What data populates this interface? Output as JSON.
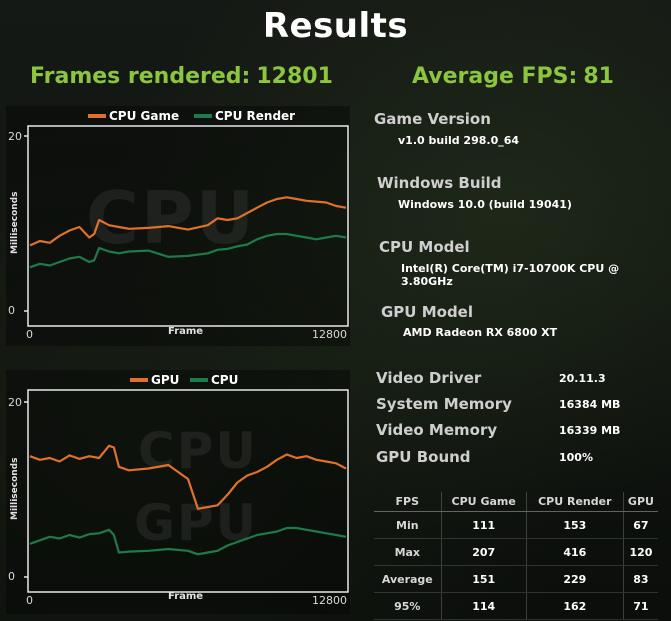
{
  "title": "Results",
  "summary": {
    "frames_rendered_label": "Frames rendered:",
    "frames_rendered_value": "12801",
    "average_fps_label": "Average FPS:",
    "average_fps_value": "81"
  },
  "colors": {
    "accent_green": "#8cc63f",
    "series_orange": "#e0702a",
    "series_green": "#1f7a4a"
  },
  "charts": {
    "cpu": {
      "watermark": "CPU",
      "legend": [
        "CPU Game",
        "CPU Render"
      ],
      "ylabel": "Milliseconds",
      "xlabel": "Frame",
      "y_ticks": [
        "20",
        "0"
      ],
      "x_ticks": [
        "0",
        "12800"
      ]
    },
    "gpu": {
      "watermark_top": "CPU",
      "watermark_bottom": "GPU",
      "legend": [
        "GPU",
        "CPU"
      ],
      "ylabel": "Milliseconds",
      "xlabel": "Frame",
      "y_ticks": [
        "20",
        "0"
      ],
      "x_ticks": [
        "0",
        "12800"
      ]
    }
  },
  "chart_data": [
    {
      "type": "line",
      "title": "",
      "xlabel": "Frame",
      "ylabel": "Milliseconds",
      "xlim": [
        0,
        12800
      ],
      "ylim": [
        0,
        20
      ],
      "x": [
        0,
        400,
        800,
        1200,
        1600,
        2000,
        2400,
        2600,
        2800,
        3200,
        3600,
        4000,
        4800,
        5600,
        6400,
        7200,
        7600,
        8000,
        8400,
        8800,
        9200,
        9600,
        10000,
        10400,
        10800,
        11200,
        11600,
        12000,
        12400,
        12800
      ],
      "series": [
        {
          "name": "CPU Game",
          "values": [
            7.5,
            8.0,
            7.8,
            8.6,
            9.2,
            9.6,
            8.4,
            8.8,
            10.4,
            9.8,
            9.6,
            9.4,
            9.5,
            9.7,
            9.3,
            9.8,
            10.6,
            10.4,
            10.6,
            11.2,
            11.8,
            12.4,
            12.8,
            13.0,
            12.8,
            12.6,
            12.5,
            12.4,
            12.0,
            11.8
          ]
        },
        {
          "name": "CPU Render",
          "values": [
            5.0,
            5.4,
            5.2,
            5.6,
            6.0,
            6.2,
            5.6,
            5.8,
            7.2,
            6.8,
            6.6,
            6.8,
            6.9,
            6.2,
            6.3,
            6.6,
            7.0,
            7.1,
            7.4,
            7.6,
            8.2,
            8.6,
            8.8,
            8.8,
            8.6,
            8.4,
            8.2,
            8.4,
            8.6,
            8.4
          ]
        }
      ]
    },
    {
      "type": "line",
      "title": "",
      "xlabel": "Frame",
      "ylabel": "Milliseconds",
      "xlim": [
        0,
        12800
      ],
      "ylim": [
        0,
        20
      ],
      "x": [
        0,
        400,
        800,
        1200,
        1600,
        2000,
        2400,
        2800,
        3200,
        3400,
        3600,
        4000,
        4800,
        5600,
        6400,
        6800,
        7200,
        7600,
        8000,
        8400,
        8800,
        9200,
        9600,
        10000,
        10400,
        10800,
        11200,
        11600,
        12000,
        12400,
        12800
      ],
      "series": [
        {
          "name": "GPU",
          "values": [
            13.8,
            13.4,
            13.6,
            13.2,
            13.9,
            13.5,
            13.8,
            13.6,
            15.0,
            14.8,
            12.6,
            12.2,
            12.4,
            12.8,
            11.2,
            7.8,
            8.0,
            8.2,
            9.4,
            10.8,
            11.6,
            12.0,
            12.6,
            13.4,
            14.0,
            13.6,
            13.8,
            13.4,
            13.2,
            13.0,
            12.4
          ]
        },
        {
          "name": "CPU",
          "values": [
            3.8,
            4.2,
            4.6,
            4.4,
            4.8,
            4.5,
            4.9,
            5.0,
            5.4,
            4.8,
            2.8,
            2.9,
            3.0,
            3.2,
            3.0,
            2.6,
            2.8,
            3.0,
            3.6,
            4.0,
            4.4,
            4.8,
            5.0,
            5.2,
            5.6,
            5.6,
            5.4,
            5.2,
            5.0,
            4.8,
            4.6
          ]
        }
      ]
    }
  ],
  "info": {
    "game_version_label": "Game Version",
    "game_version_value": "v1.0 build 298.0_64",
    "windows_build_label": "Windows Build",
    "windows_build_value": "Windows 10.0 (build 19041)",
    "cpu_model_label": "CPU Model",
    "cpu_model_value": "Intel(R) Core(TM) i7-10700K CPU @ 3.80GHz",
    "gpu_model_label": "GPU Model",
    "gpu_model_value": "AMD Radeon RX 6800 XT",
    "video_driver_label": "Video Driver",
    "video_driver_value": "20.11.3",
    "system_memory_label": "System Memory",
    "system_memory_value": "16384 MB",
    "video_memory_label": "Video Memory",
    "video_memory_value": "16339 MB",
    "gpu_bound_label": "GPU Bound",
    "gpu_bound_value": "100%"
  },
  "stats_table": {
    "headers": [
      "FPS",
      "CPU Game",
      "CPU Render",
      "GPU"
    ],
    "rows": [
      {
        "label": "Min",
        "values": [
          "111",
          "153",
          "67"
        ]
      },
      {
        "label": "Max",
        "values": [
          "207",
          "416",
          "120"
        ]
      },
      {
        "label": "Average",
        "values": [
          "151",
          "229",
          "83"
        ]
      },
      {
        "label": "95%",
        "values": [
          "114",
          "162",
          "71"
        ]
      }
    ]
  }
}
